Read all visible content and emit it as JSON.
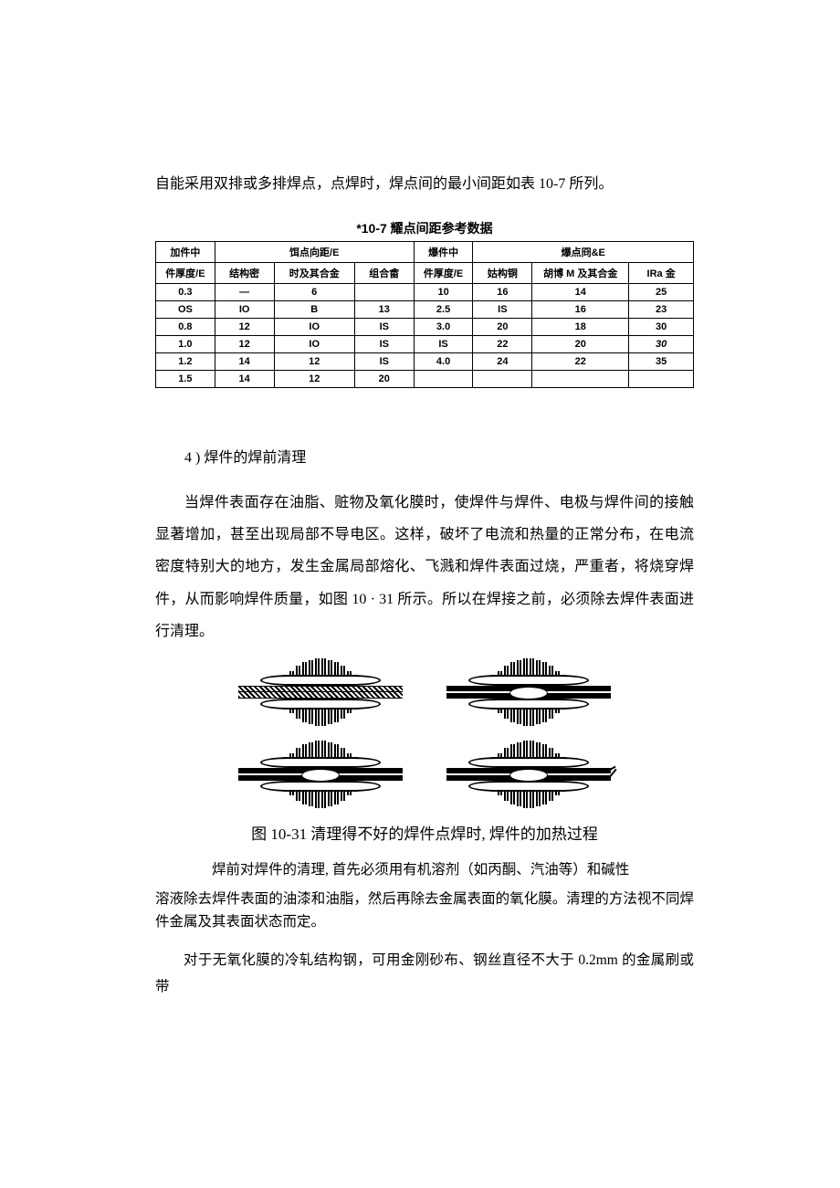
{
  "intro": "自能采用双排或多排焊点，点焊时，焊点间的最小间距如表 10-7 所列。",
  "table": {
    "title": "*10-7 耀点间距参考数据",
    "header_row1": [
      "加件中",
      "饵点向距/E",
      "爆件中",
      "爆点冏&E"
    ],
    "header_row1_spans": [
      1,
      3,
      1,
      3
    ],
    "header_row2": [
      "件厚度/E",
      "结构密",
      "时及其合金",
      "组合畲",
      "件厚度/E",
      "姑构铜",
      "胡博 M 及其合金",
      "IRa 金"
    ],
    "col_widths": [
      "11%",
      "11%",
      "15%",
      "11%",
      "11%",
      "11%",
      "18%",
      "12%"
    ],
    "rows": [
      [
        "0.3",
        "—",
        "6",
        "",
        "10",
        "16",
        "14",
        "25"
      ],
      [
        "OS",
        "IO",
        "B",
        "13",
        "2.5",
        "IS",
        "16",
        "23"
      ],
      [
        "0.8",
        "12",
        "IO",
        "IS",
        "3.0",
        "20",
        "18",
        "30"
      ],
      [
        "1.0",
        "12",
        "IO",
        "IS",
        "IS",
        "22",
        "20",
        "30"
      ],
      [
        "1.2",
        "14",
        "12",
        "IS",
        "4.0",
        "24",
        "22",
        "35"
      ],
      [
        "1.5",
        "14",
        "12",
        "20",
        "",
        "",
        "",
        ""
      ]
    ],
    "italic_cells": [
      [
        3,
        7
      ]
    ]
  },
  "section_heading": "4 ) 焊件的焊前清理",
  "paragraphs": [
    "当焊件表面存在油脂、赃物及氧化膜时，使焊件与焊件、电极与焊件间的接触显著增加，甚至出现局部不导电区。这样，破坏了电流和热量的正常分布，在电流密度特别大的地方，发生金属局部熔化、飞溅和焊件表面过烧，严重者，将烧穿焊件，从而影响焊件质量，如图 10 · 31 所示。所以在焊接之前，必须除去焊件表面进行清理。"
  ],
  "figure_caption": "图 10-31 清理得不好的焊件点焊时, 焊件的加热过程",
  "after_fig": [
    "焊前对焊件的清理, 首先必须用有机溶剂（如丙酮、汽油等）和碱性",
    "溶液除去焊件表面的油漆和油脂，然后再除去金属表面的氧化膜。清理的方法视不同焊件金属及其表面状态而定。",
    "对于无氧化膜的冷轧结构钢，可用金刚砂布、钢丝直径不大于 0.2mm 的金属刷或带"
  ]
}
